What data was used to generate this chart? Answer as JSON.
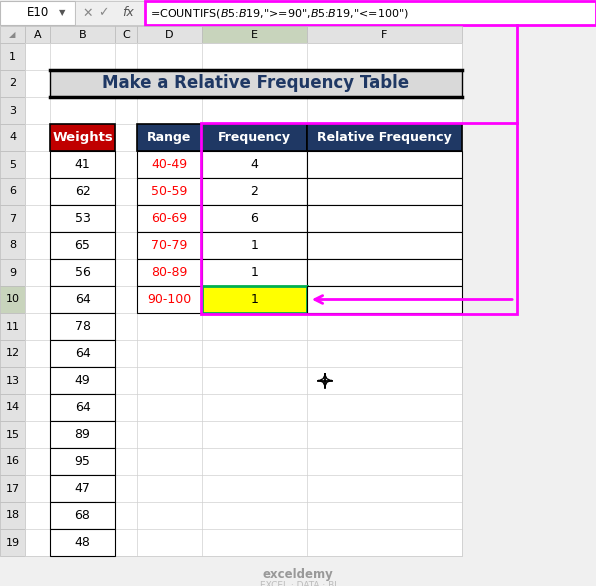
{
  "title": "Make a Relative Frequency Table",
  "formula_text": "=COUNTIFS($B$5:$B$19,\">= 90\",$B$5:$B$19,\"<= 100\")",
  "formula_cell": "E10",
  "weights": [
    41,
    62,
    53,
    65,
    56,
    64,
    78,
    64,
    49,
    64,
    89,
    95,
    47,
    68,
    48
  ],
  "ranges": [
    "40-49",
    "50-59",
    "60-69",
    "70-79",
    "80-89",
    "90-100"
  ],
  "frequencies": [
    4,
    2,
    6,
    1,
    1,
    1
  ],
  "header_bg": "#1F3864",
  "header_text": "#FFFFFF",
  "weights_header_bg": "#C00000",
  "weights_header_text": "#FFFFFF",
  "range_text_color": "#FF0000",
  "cell_highlight_bg": "#FFFF00",
  "magenta": "#FF00FF",
  "title_bg": "#D9D9D9",
  "title_text_color": "#1F3864",
  "active_cell_border": "#00B050",
  "col_header_active_bg": "#C8D4BC",
  "col_header_bg": "#E2E2E2",
  "row_header_active_bg": "#C8D4BC",
  "row_header_bg": "#E2E2E2",
  "grid_color": "#D0D0D0",
  "cell_border_color": "#AAAAAA",
  "watermark_color1": "#999999",
  "watermark_color2": "#BBBBBB"
}
